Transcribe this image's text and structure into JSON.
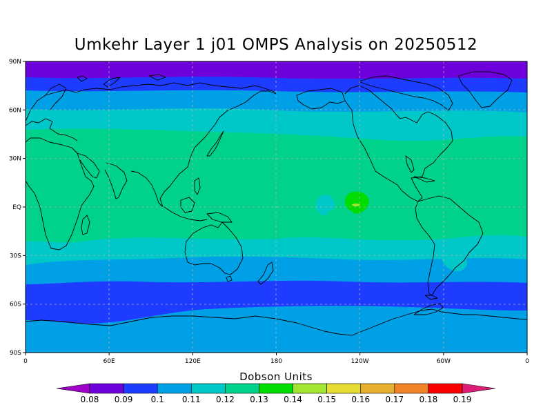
{
  "title": "Umkehr Layer 1 j01 OMPS Analysis on 20250512",
  "legend": {
    "title": "Dobson Units",
    "levels": [
      "0.08",
      "0.09",
      "0.1",
      "0.11",
      "0.12",
      "0.13",
      "0.14",
      "0.15",
      "0.16",
      "0.17",
      "0.18",
      "0.19"
    ],
    "colors": [
      "#a000c8",
      "#6e00dc",
      "#1e3cff",
      "#00a0e6",
      "#00c8c8",
      "#00d28c",
      "#00dc00",
      "#a0e632",
      "#e6dc32",
      "#e6af2d",
      "#f08228",
      "#fa0000",
      "#dc1e78"
    ]
  },
  "axes": {
    "x_labels": [
      "0",
      "60E",
      "120E",
      "180",
      "120W",
      "60W",
      "0"
    ],
    "y_labels": [
      "90N",
      "60N",
      "30N",
      "EQ",
      "30S",
      "60S",
      "90S"
    ]
  },
  "chart_data": {
    "type": "heatmap",
    "title": "Umkehr Layer 1 j01 OMPS Analysis on 20250512",
    "xlabel": "",
    "ylabel": "",
    "xlim": [
      0,
      360
    ],
    "ylim": [
      -90,
      90
    ],
    "grid": true,
    "units": "Dobson Units",
    "zonal_bands": [
      {
        "lat_from": 90,
        "lat_to": 78,
        "value": 0.08
      },
      {
        "lat_from": 78,
        "lat_to": 70,
        "value": 0.09
      },
      {
        "lat_from": 70,
        "lat_to": 55,
        "value": 0.1
      },
      {
        "lat_from": 55,
        "lat_to": 40,
        "value": 0.11
      },
      {
        "lat_from": 40,
        "lat_to": -18,
        "value": 0.12
      },
      {
        "lat_from": -18,
        "lat_to": -28,
        "value": 0.11
      },
      {
        "lat_from": -28,
        "lat_to": -48,
        "value": 0.1
      },
      {
        "lat_from": -48,
        "lat_to": -65,
        "value": 0.09
      },
      {
        "lat_from": -65,
        "lat_to": -90,
        "value": 0.1
      }
    ],
    "maxima": [
      {
        "lon": 240,
        "lat": 3,
        "value": 0.13
      }
    ]
  }
}
